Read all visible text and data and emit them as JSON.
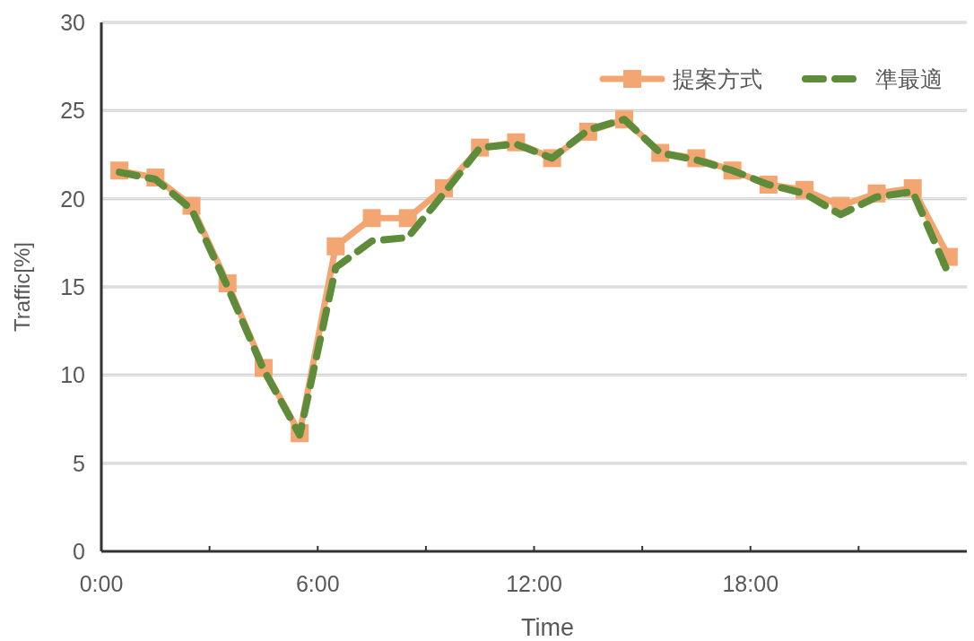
{
  "chart_data": {
    "type": "line",
    "xlabel": "Time",
    "ylabel": "Traffic[%]",
    "x": [
      0.5,
      1.5,
      2.5,
      3.5,
      4.5,
      5.5,
      6.5,
      7.5,
      8.5,
      9.5,
      10.5,
      11.5,
      12.5,
      13.5,
      14.5,
      15.5,
      16.5,
      17.5,
      18.5,
      19.5,
      20.5,
      21.5,
      22.5,
      23.5
    ],
    "series": [
      {
        "name": "提案方式",
        "color": "#f4a672",
        "marker": "square",
        "line_style": "solid",
        "values": [
          21.6,
          21.2,
          19.6,
          15.2,
          10.4,
          6.7,
          17.3,
          18.9,
          18.9,
          20.6,
          22.9,
          23.2,
          22.3,
          23.8,
          24.5,
          22.6,
          22.3,
          21.6,
          20.8,
          20.5,
          19.6,
          20.3,
          20.6,
          16.7
        ]
      },
      {
        "name": "準最適",
        "color": "#5e8c3a",
        "marker": "none",
        "line_style": "dashed",
        "values": [
          21.5,
          21.1,
          19.4,
          15.0,
          10.3,
          6.6,
          16.1,
          17.6,
          17.8,
          20.3,
          22.9,
          23.1,
          22.3,
          23.9,
          24.5,
          22.6,
          22.2,
          21.6,
          20.8,
          20.3,
          19.1,
          20.1,
          20.4,
          15.7
        ]
      }
    ],
    "xlim": [
      0,
      24
    ],
    "xticks": [
      {
        "value": 0,
        "label": "0:00"
      },
      {
        "value": 3,
        "label": null
      },
      {
        "value": 6,
        "label": "6:00"
      },
      {
        "value": 9,
        "label": null
      },
      {
        "value": 12,
        "label": "12:00"
      },
      {
        "value": 15,
        "label": null
      },
      {
        "value": 18,
        "label": "18:00"
      },
      {
        "value": 21,
        "label": null
      }
    ],
    "ylim": [
      0,
      30
    ],
    "yticks": [
      0,
      5,
      10,
      15,
      20,
      25,
      30
    ],
    "grid": "y",
    "legend": "top right"
  }
}
